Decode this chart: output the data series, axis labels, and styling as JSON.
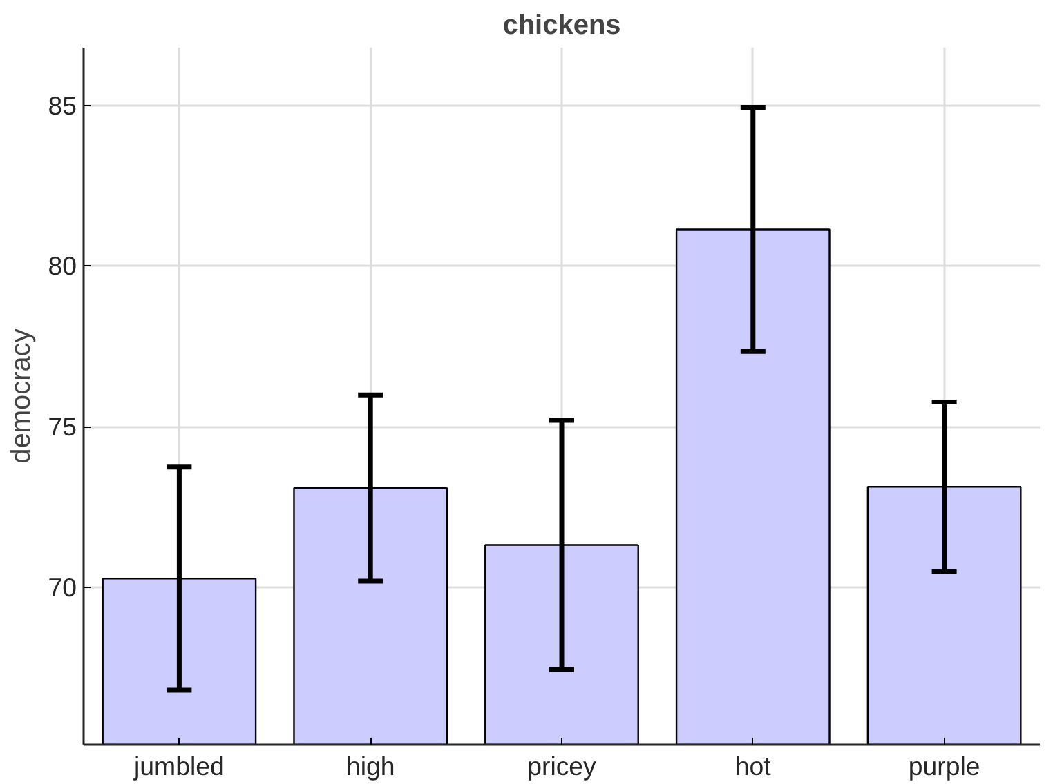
{
  "chart_data": {
    "type": "bar",
    "title": "chickens",
    "ylabel": "democracy",
    "categories": [
      "jumbled",
      "high",
      "pricey",
      "hot",
      "purple"
    ],
    "values": [
      70.27,
      73.09,
      71.32,
      81.14,
      73.13
    ],
    "errors": [
      3.47,
      2.9,
      3.88,
      3.8,
      2.64
    ],
    "color": "#ccccff",
    "ylim": [
      65.1,
      86.8
    ],
    "yticks": [
      70,
      75,
      80,
      85
    ],
    "grid": true
  }
}
